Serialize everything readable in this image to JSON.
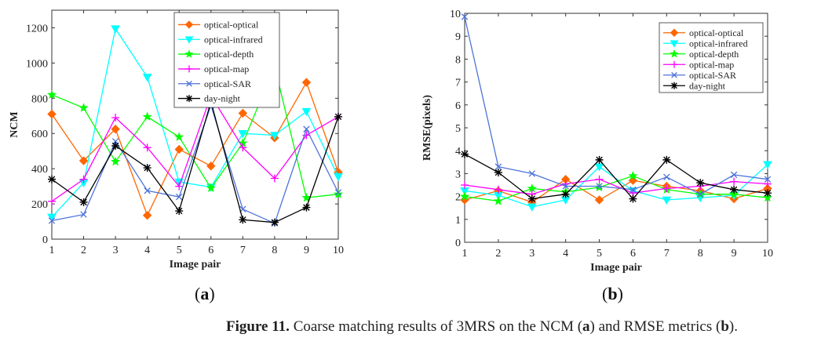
{
  "chart_data": [
    {
      "type": "line",
      "panel_label": "a",
      "title": "",
      "xlabel": "Image pair",
      "ylabel": "NCM",
      "x": [
        1,
        2,
        3,
        4,
        5,
        6,
        7,
        8,
        9,
        10
      ],
      "xlim": [
        1,
        10
      ],
      "ylim": [
        0,
        1300
      ],
      "xticks": [
        "1",
        "2",
        "3",
        "4",
        "5",
        "6",
        "7",
        "8",
        "9",
        "10"
      ],
      "yticks": [
        "0",
        "200",
        "400",
        "600",
        "800",
        "1000",
        "1200"
      ],
      "ytick_values": [
        0,
        200,
        400,
        600,
        800,
        1000,
        1200
      ],
      "grid": false,
      "legend_position": "top-center",
      "series": [
        {
          "name": "optical-optical",
          "color": "#ff6600",
          "marker": "diamond",
          "values": [
            710,
            445,
            625,
            135,
            510,
            415,
            715,
            575,
            890,
            380
          ]
        },
        {
          "name": "optical-infrared",
          "color": "#00ffff",
          "marker": "triangle-down",
          "values": [
            125,
            320,
            1195,
            920,
            325,
            295,
            600,
            590,
            725,
            355
          ]
        },
        {
          "name": "optical-depth",
          "color": "#00ff00",
          "marker": "star",
          "values": [
            820,
            745,
            440,
            695,
            580,
            290,
            545,
            980,
            235,
            255
          ]
        },
        {
          "name": "optical-map",
          "color": "#ff00ff",
          "marker": "plus",
          "values": [
            215,
            340,
            690,
            520,
            300,
            815,
            520,
            345,
            590,
            695
          ]
        },
        {
          "name": "optical-SAR",
          "color": "#4d73d9",
          "marker": "x",
          "values": [
            105,
            140,
            555,
            275,
            240,
            760,
            170,
            90,
            625,
            265
          ]
        },
        {
          "name": "day-night",
          "color": "#000000",
          "marker": "asterisk",
          "values": [
            340,
            210,
            530,
            405,
            160,
            780,
            110,
            95,
            180,
            695
          ]
        }
      ]
    },
    {
      "type": "line",
      "panel_label": "b",
      "title": "",
      "xlabel": "Image pair",
      "ylabel": "RMSE(pixels)",
      "x": [
        1,
        2,
        3,
        4,
        5,
        6,
        7,
        8,
        9,
        10
      ],
      "xlim": [
        1,
        10
      ],
      "ylim": [
        0,
        10
      ],
      "xticks": [
        "1",
        "2",
        "3",
        "4",
        "5",
        "6",
        "7",
        "8",
        "9",
        "10"
      ],
      "yticks": [
        "0",
        "1",
        "2",
        "3",
        "4",
        "5",
        "6",
        "7",
        "8",
        "9",
        "10"
      ],
      "ytick_values": [
        0,
        1,
        2,
        3,
        4,
        5,
        6,
        7,
        8,
        9,
        10
      ],
      "grid": false,
      "legend_position": "top-right",
      "series": [
        {
          "name": "optical-optical",
          "color": "#ff6600",
          "marker": "diamond",
          "values": [
            1.85,
            2.25,
            1.75,
            2.75,
            1.85,
            2.7,
            2.45,
            2.25,
            1.9,
            2.35
          ]
        },
        {
          "name": "optical-infrared",
          "color": "#00ffff",
          "marker": "triangle-down",
          "values": [
            2.25,
            2.05,
            1.55,
            1.85,
            3.3,
            2.25,
            1.85,
            1.95,
            2.05,
            3.4
          ]
        },
        {
          "name": "optical-depth",
          "color": "#00ff00",
          "marker": "star",
          "values": [
            2.0,
            1.8,
            2.35,
            2.2,
            2.4,
            2.9,
            2.3,
            2.1,
            2.1,
            1.95
          ]
        },
        {
          "name": "optical-map",
          "color": "#ff00ff",
          "marker": "plus",
          "values": [
            2.5,
            2.3,
            2.1,
            2.55,
            2.75,
            2.15,
            2.35,
            2.45,
            2.65,
            2.55
          ]
        },
        {
          "name": "optical-SAR",
          "color": "#4d73d9",
          "marker": "x",
          "values": [
            9.85,
            3.3,
            3.0,
            2.45,
            2.45,
            2.3,
            2.85,
            2.1,
            2.95,
            2.75
          ]
        },
        {
          "name": "day-night",
          "color": "#000000",
          "marker": "asterisk",
          "values": [
            3.85,
            3.05,
            1.9,
            2.1,
            3.6,
            1.9,
            3.6,
            2.6,
            2.3,
            2.15
          ]
        }
      ]
    }
  ],
  "panel_labels": [
    "a",
    "b"
  ],
  "caption": {
    "prefix": "Figure 11.",
    "part1": " Coarse matching results of 3MRS on the NCM (",
    "a": "a",
    "part2": ") and RMSE metrics (",
    "b": "b",
    "part3": ")."
  }
}
